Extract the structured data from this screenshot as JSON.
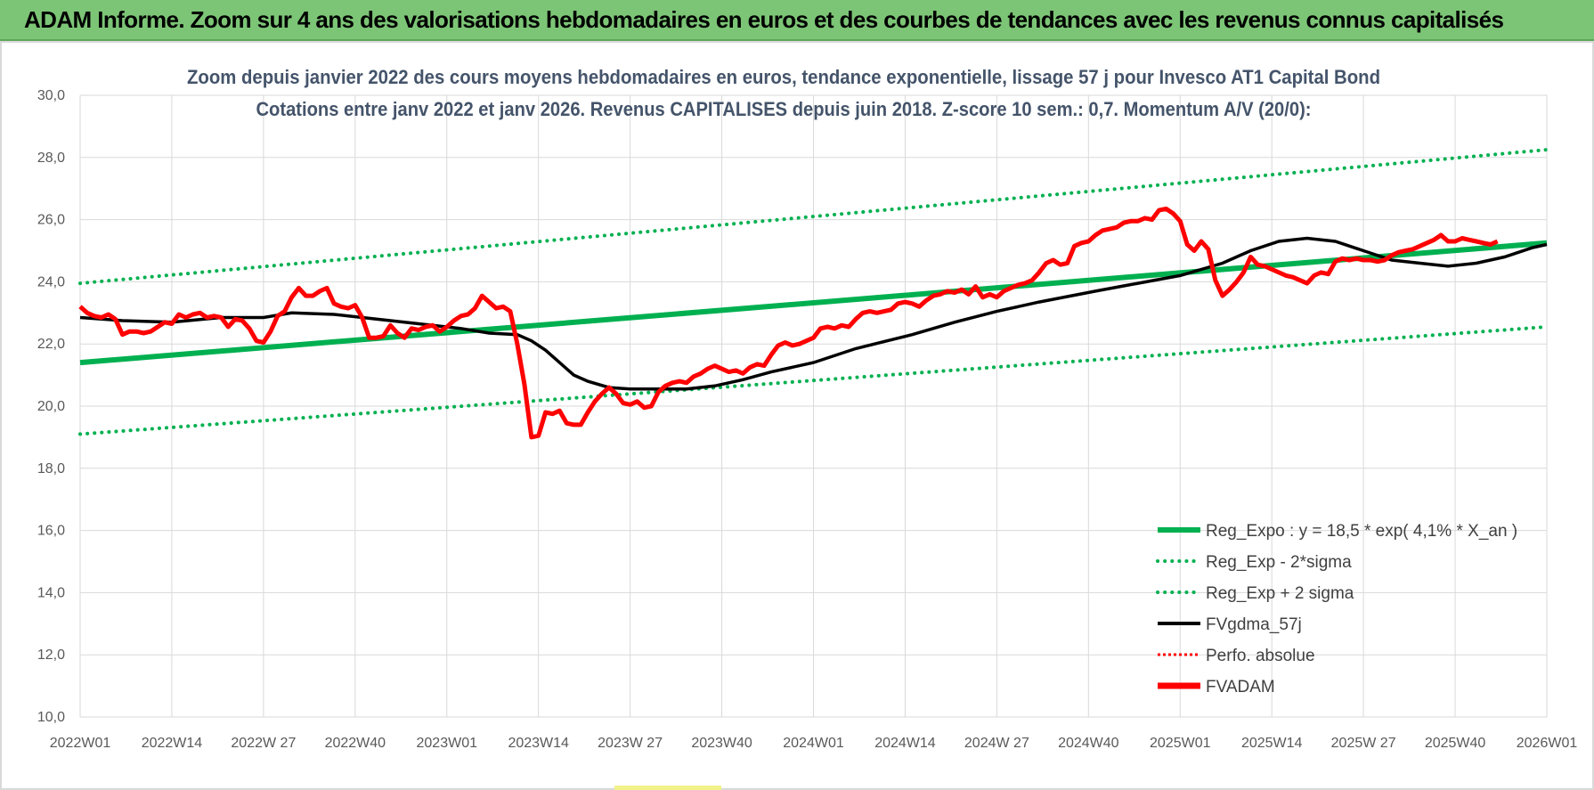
{
  "banner": {
    "title": "ADAM Informe. Zoom sur 4 ans des valorisations hebdomadaires en euros et des courbes de tendances avec les revenus connus capitalisés"
  },
  "colors": {
    "banner": "#7cc576",
    "green": "#00b050",
    "red": "#ff0000",
    "black": "#000000",
    "title_text": "#44546a",
    "grid": "#d9d9d9"
  },
  "chart_data": {
    "type": "line",
    "title_line1": "Zoom depuis janvier 2022 des cours moyens hebdomadaires en euros, tendance exponentielle, lissage 57 j pour Invesco AT1 Capital Bond",
    "title_line2": "Cotations entre janv 2022 et janv 2026. Revenus CAPITALISES depuis juin 2018. Z-score 10 sem.: 0,7. Momentum A/V (20/0):",
    "x_ticks": [
      "2022W01",
      "2022W14",
      "2022W 27",
      "2022W40",
      "2023W01",
      "2023W14",
      "2023W 27",
      "2023W40",
      "2024W01",
      "2024W14",
      "2024W 27",
      "2024W40",
      "2025W01",
      "2025W14",
      "2025W 27",
      "2025W40",
      "2026W01"
    ],
    "y_ticks": [
      "30,0",
      "28,0",
      "26,0",
      "24,0",
      "22,0",
      "20,0",
      "18,0",
      "16,0",
      "14,0",
      "12,0",
      "10,0"
    ],
    "ylim": [
      10,
      30
    ],
    "grid": true,
    "legend_position": "bottom-right",
    "legend": [
      "Reg_Expo : y = 18,5 * exp( 4,1% *  X_an )",
      "Reg_Exp - 2*sigma",
      "Reg_Exp + 2 sigma",
      "FVgdma_57j",
      "Perfo. absolue",
      "FVADAM"
    ],
    "series": [
      {
        "name": "Reg_Expo : y = 18,5 * exp( 4,1% *  X_an )",
        "style": "solid-green-thick",
        "points": [
          [
            0,
            21.4
          ],
          [
            208,
            25.25
          ]
        ]
      },
      {
        "name": "Reg_Exp - 2*sigma",
        "style": "dotted-green",
        "points": [
          [
            0,
            19.1
          ],
          [
            208,
            22.55
          ]
        ]
      },
      {
        "name": "Reg_Exp + 2 sigma",
        "style": "dotted-green",
        "points": [
          [
            0,
            23.95
          ],
          [
            208,
            28.25
          ]
        ]
      },
      {
        "name": "FVgdma_57j",
        "style": "solid-black",
        "points": [
          [
            0,
            22.85
          ],
          [
            6,
            22.75
          ],
          [
            13,
            22.7
          ],
          [
            20,
            22.85
          ],
          [
            26,
            22.85
          ],
          [
            30,
            23.0
          ],
          [
            36,
            22.95
          ],
          [
            42,
            22.8
          ],
          [
            48,
            22.65
          ],
          [
            54,
            22.5
          ],
          [
            58,
            22.35
          ],
          [
            62,
            22.3
          ],
          [
            64,
            22.1
          ],
          [
            66,
            21.8
          ],
          [
            68,
            21.4
          ],
          [
            70,
            21.0
          ],
          [
            72,
            20.8
          ],
          [
            75,
            20.6
          ],
          [
            78,
            20.55
          ],
          [
            82,
            20.55
          ],
          [
            86,
            20.55
          ],
          [
            90,
            20.65
          ],
          [
            94,
            20.85
          ],
          [
            98,
            21.1
          ],
          [
            104,
            21.4
          ],
          [
            110,
            21.85
          ],
          [
            118,
            22.3
          ],
          [
            124,
            22.7
          ],
          [
            130,
            23.05
          ],
          [
            136,
            23.35
          ],
          [
            144,
            23.7
          ],
          [
            150,
            23.95
          ],
          [
            156,
            24.2
          ],
          [
            162,
            24.6
          ],
          [
            166,
            25.0
          ],
          [
            170,
            25.3
          ],
          [
            174,
            25.4
          ],
          [
            178,
            25.3
          ],
          [
            182,
            25.0
          ],
          [
            186,
            24.7
          ],
          [
            190,
            24.6
          ],
          [
            194,
            24.5
          ],
          [
            198,
            24.6
          ],
          [
            202,
            24.8
          ],
          [
            206,
            25.1
          ],
          [
            208,
            25.2
          ]
        ]
      },
      {
        "name": "FVADAM",
        "style": "solid-red-thick",
        "points": [
          [
            0,
            23.2
          ],
          [
            1,
            23.0
          ],
          [
            2,
            22.9
          ],
          [
            3,
            22.85
          ],
          [
            4,
            22.95
          ],
          [
            5,
            22.8
          ],
          [
            6,
            22.3
          ],
          [
            7,
            22.4
          ],
          [
            8,
            22.4
          ],
          [
            9,
            22.35
          ],
          [
            10,
            22.4
          ],
          [
            11,
            22.55
          ],
          [
            12,
            22.7
          ],
          [
            13,
            22.65
          ],
          [
            14,
            22.95
          ],
          [
            15,
            22.85
          ],
          [
            16,
            22.95
          ],
          [
            17,
            23.0
          ],
          [
            18,
            22.85
          ],
          [
            19,
            22.9
          ],
          [
            20,
            22.85
          ],
          [
            21,
            22.55
          ],
          [
            22,
            22.8
          ],
          [
            23,
            22.75
          ],
          [
            24,
            22.5
          ],
          [
            25,
            22.1
          ],
          [
            26,
            22.05
          ],
          [
            27,
            22.4
          ],
          [
            28,
            22.9
          ],
          [
            29,
            23.05
          ],
          [
            30,
            23.5
          ],
          [
            31,
            23.8
          ],
          [
            32,
            23.55
          ],
          [
            33,
            23.55
          ],
          [
            34,
            23.7
          ],
          [
            35,
            23.8
          ],
          [
            36,
            23.3
          ],
          [
            37,
            23.2
          ],
          [
            38,
            23.15
          ],
          [
            39,
            23.25
          ],
          [
            40,
            22.85
          ],
          [
            41,
            22.2
          ],
          [
            42,
            22.2
          ],
          [
            43,
            22.25
          ],
          [
            44,
            22.6
          ],
          [
            45,
            22.35
          ],
          [
            46,
            22.2
          ],
          [
            47,
            22.5
          ],
          [
            48,
            22.45
          ],
          [
            49,
            22.55
          ],
          [
            50,
            22.6
          ],
          [
            51,
            22.4
          ],
          [
            52,
            22.55
          ],
          [
            53,
            22.75
          ],
          [
            54,
            22.9
          ],
          [
            55,
            22.95
          ],
          [
            56,
            23.15
          ],
          [
            57,
            23.55
          ],
          [
            58,
            23.35
          ],
          [
            59,
            23.15
          ],
          [
            60,
            23.2
          ],
          [
            61,
            23.05
          ],
          [
            62,
            22.0
          ],
          [
            63,
            20.7
          ],
          [
            64,
            19.0
          ],
          [
            65,
            19.05
          ],
          [
            66,
            19.8
          ],
          [
            67,
            19.75
          ],
          [
            68,
            19.85
          ],
          [
            69,
            19.45
          ],
          [
            70,
            19.4
          ],
          [
            71,
            19.4
          ],
          [
            72,
            19.8
          ],
          [
            73,
            20.15
          ],
          [
            74,
            20.4
          ],
          [
            75,
            20.6
          ],
          [
            76,
            20.4
          ],
          [
            77,
            20.1
          ],
          [
            78,
            20.05
          ],
          [
            79,
            20.15
          ],
          [
            80,
            19.95
          ],
          [
            81,
            20.0
          ],
          [
            82,
            20.45
          ],
          [
            83,
            20.65
          ],
          [
            84,
            20.75
          ],
          [
            85,
            20.8
          ],
          [
            86,
            20.75
          ],
          [
            87,
            20.95
          ],
          [
            88,
            21.05
          ],
          [
            89,
            21.2
          ],
          [
            90,
            21.3
          ],
          [
            91,
            21.2
          ],
          [
            92,
            21.1
          ],
          [
            93,
            21.15
          ],
          [
            94,
            21.05
          ],
          [
            95,
            21.25
          ],
          [
            96,
            21.35
          ],
          [
            97,
            21.3
          ],
          [
            98,
            21.65
          ],
          [
            99,
            21.95
          ],
          [
            100,
            22.05
          ],
          [
            101,
            21.95
          ],
          [
            102,
            22.0
          ],
          [
            103,
            22.1
          ],
          [
            104,
            22.2
          ],
          [
            105,
            22.5
          ],
          [
            106,
            22.55
          ],
          [
            107,
            22.5
          ],
          [
            108,
            22.6
          ],
          [
            109,
            22.55
          ],
          [
            110,
            22.8
          ],
          [
            111,
            23.0
          ],
          [
            112,
            23.05
          ],
          [
            113,
            23.0
          ],
          [
            114,
            23.05
          ],
          [
            115,
            23.1
          ],
          [
            116,
            23.3
          ],
          [
            117,
            23.35
          ],
          [
            118,
            23.3
          ],
          [
            119,
            23.2
          ],
          [
            120,
            23.4
          ],
          [
            121,
            23.55
          ],
          [
            122,
            23.6
          ],
          [
            123,
            23.7
          ],
          [
            124,
            23.65
          ],
          [
            125,
            23.75
          ],
          [
            126,
            23.6
          ],
          [
            127,
            23.85
          ],
          [
            128,
            23.5
          ],
          [
            129,
            23.6
          ],
          [
            130,
            23.5
          ],
          [
            131,
            23.7
          ],
          [
            132,
            23.8
          ],
          [
            133,
            23.9
          ],
          [
            134,
            23.95
          ],
          [
            135,
            24.05
          ],
          [
            136,
            24.3
          ],
          [
            137,
            24.6
          ],
          [
            138,
            24.7
          ],
          [
            139,
            24.55
          ],
          [
            140,
            24.6
          ],
          [
            141,
            25.15
          ],
          [
            142,
            25.25
          ],
          [
            143,
            25.3
          ],
          [
            144,
            25.5
          ],
          [
            145,
            25.65
          ],
          [
            146,
            25.7
          ],
          [
            147,
            25.75
          ],
          [
            148,
            25.9
          ],
          [
            149,
            25.95
          ],
          [
            150,
            25.95
          ],
          [
            151,
            26.05
          ],
          [
            152,
            26.0
          ],
          [
            153,
            26.3
          ],
          [
            154,
            26.35
          ],
          [
            155,
            26.2
          ],
          [
            156,
            25.95
          ],
          [
            157,
            25.2
          ],
          [
            158,
            25.0
          ],
          [
            159,
            25.3
          ],
          [
            160,
            25.05
          ],
          [
            161,
            24.05
          ],
          [
            162,
            23.55
          ],
          [
            163,
            23.75
          ],
          [
            164,
            24.0
          ],
          [
            165,
            24.3
          ],
          [
            166,
            24.8
          ],
          [
            167,
            24.55
          ],
          [
            168,
            24.5
          ],
          [
            169,
            24.4
          ],
          [
            170,
            24.3
          ],
          [
            171,
            24.2
          ],
          [
            172,
            24.15
          ],
          [
            173,
            24.05
          ],
          [
            174,
            23.95
          ],
          [
            175,
            24.2
          ],
          [
            176,
            24.3
          ],
          [
            177,
            24.25
          ],
          [
            178,
            24.65
          ],
          [
            179,
            24.75
          ],
          [
            180,
            24.7
          ],
          [
            181,
            24.75
          ],
          [
            182,
            24.7
          ],
          [
            183,
            24.7
          ],
          [
            184,
            24.65
          ],
          [
            185,
            24.7
          ],
          [
            186,
            24.85
          ],
          [
            187,
            24.95
          ],
          [
            188,
            25.0
          ],
          [
            189,
            25.05
          ],
          [
            190,
            25.15
          ],
          [
            191,
            25.25
          ],
          [
            192,
            25.35
          ],
          [
            193,
            25.5
          ],
          [
            194,
            25.3
          ],
          [
            195,
            25.3
          ],
          [
            196,
            25.4
          ],
          [
            197,
            25.35
          ],
          [
            198,
            25.3
          ],
          [
            199,
            25.25
          ],
          [
            200,
            25.2
          ],
          [
            201,
            25.3
          ]
        ]
      }
    ]
  }
}
